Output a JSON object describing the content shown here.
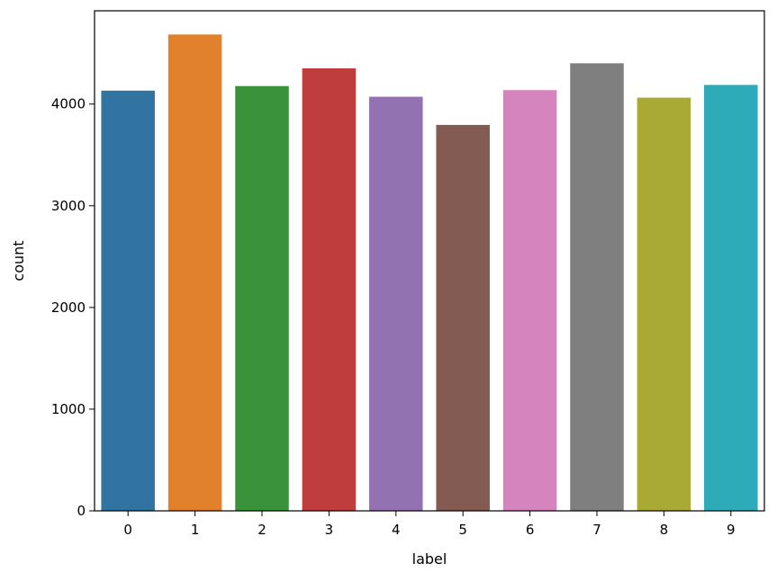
{
  "chart_data": {
    "type": "bar",
    "xlabel": "label",
    "ylabel": "count",
    "categories": [
      "0",
      "1",
      "2",
      "3",
      "4",
      "5",
      "6",
      "7",
      "8",
      "9"
    ],
    "values": [
      4132,
      4684,
      4177,
      4351,
      4072,
      3795,
      4137,
      4401,
      4063,
      4188
    ],
    "colors": [
      "#3274a1",
      "#e1812c",
      "#3a923a",
      "#c03d3e",
      "#9372b2",
      "#845b53",
      "#d684bd",
      "#7f7f7f",
      "#a9aa35",
      "#2eabb8"
    ],
    "ylim": [
      0,
      4917
    ],
    "yticks": [
      0,
      1000,
      2000,
      3000,
      4000
    ],
    "grid": false,
    "legend": "none"
  }
}
